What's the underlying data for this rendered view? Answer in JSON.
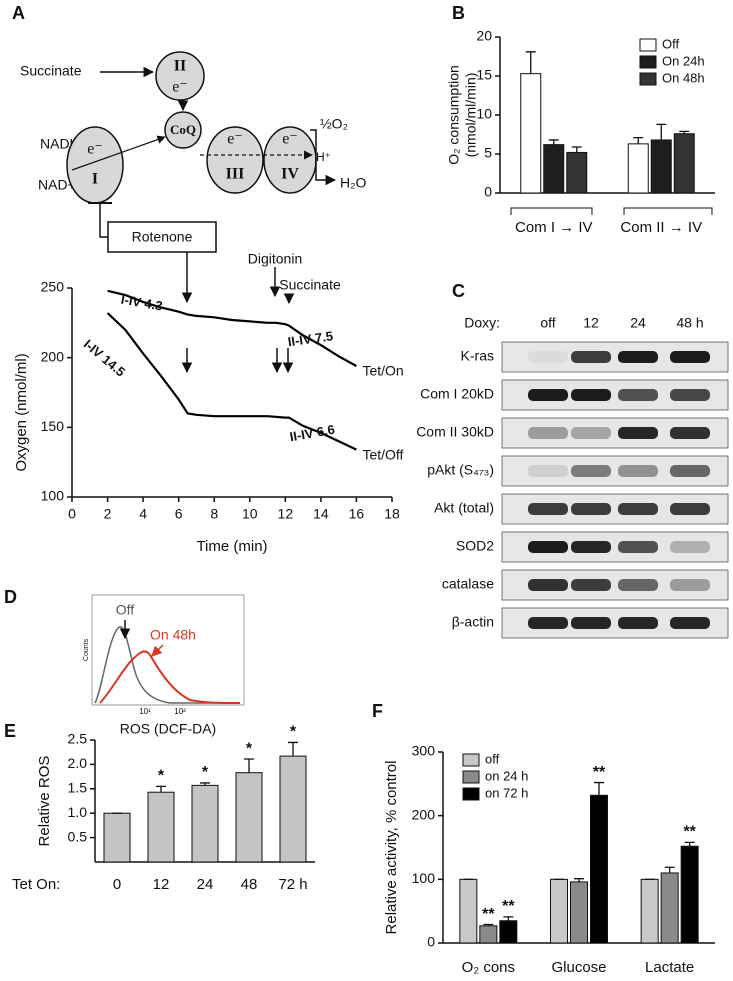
{
  "panel_labels": [
    "A",
    "B",
    "C",
    "D",
    "E",
    "F"
  ],
  "diagram": {
    "succinate": "Succinate",
    "complex_2": "II",
    "electron_2": "e⁻",
    "nadh": "NADH",
    "nad": "NAD+",
    "electron_1": "e⁻",
    "complex_1": "I",
    "coq": "CoQ",
    "electron_3": "e⁻",
    "complex_3": "III",
    "electron_4": "e⁻",
    "complex_4": "IV",
    "oxygen": "½O₂",
    "proton": "H⁺",
    "water": "H₂O",
    "rotenone": "Rotenone"
  },
  "blot": {
    "header": "Doxy:",
    "lanes": [
      "off",
      "12",
      "24",
      "48 h"
    ],
    "rows": [
      "K-ras",
      "Com I 20kD",
      "Com II 30kD",
      "pAkt (S₄₇₃)",
      "Akt (total)",
      "SOD2",
      "catalase",
      "β-actin"
    ]
  },
  "flow": {
    "ylabel": "Counts",
    "xticks": [
      "10¹",
      "10²"
    ],
    "xlabel": "ROS (DCF-DA)",
    "labels": [
      "Off",
      "On 48h"
    ],
    "colors": [
      "#555555",
      "#d9371f"
    ]
  },
  "chart_data": [
    {
      "type": "line",
      "xlabel": "Time (min)",
      "ylabel": "Oxygen (nmol/ml)",
      "xlim": [
        0,
        18
      ],
      "xticks": [
        0,
        2,
        4,
        6,
        8,
        10,
        12,
        14,
        16,
        18
      ],
      "ylim": [
        100,
        250
      ],
      "yticks": [
        100,
        150,
        200,
        250
      ],
      "series": [
        {
          "name": "Tet/On",
          "color": "#000000",
          "x": [
            2,
            3,
            4,
            5,
            6,
            6.5,
            7,
            8,
            9,
            10,
            11,
            11.5,
            12,
            12.2,
            13,
            14,
            15,
            16
          ],
          "values": [
            248,
            245,
            240,
            236,
            233,
            231,
            230,
            229,
            227,
            226,
            225,
            225,
            224,
            223,
            216,
            209,
            201,
            194
          ]
        },
        {
          "name": "Tet/Off",
          "color": "#000000",
          "x": [
            2,
            3,
            4,
            5,
            6,
            6.5,
            7,
            8,
            9,
            10,
            11,
            12,
            12.2,
            13,
            14,
            15,
            16
          ],
          "values": [
            232,
            220,
            203,
            187,
            170,
            160,
            159,
            158,
            158,
            158,
            158,
            157,
            157,
            151,
            146,
            140,
            134
          ]
        }
      ],
      "annotations": [
        "I-IV 4.3",
        "II-IV 7.5",
        "I-IV 14.5",
        "II-IV 6.6",
        "Digitonin",
        "Succinate"
      ]
    },
    {
      "type": "bar",
      "ylabel": [
        "O₂ consumption",
        "(nmol/ml/min)"
      ],
      "categories": [
        "Com I → IV",
        "Com II → IV"
      ],
      "ylim": [
        0,
        20
      ],
      "yticks": [
        0,
        5,
        10,
        15,
        20
      ],
      "legend": "top-right",
      "series": [
        {
          "name": "Off",
          "color": "#ffffff",
          "values": [
            15.3,
            6.3
          ],
          "errors": [
            2.8,
            0.8
          ]
        },
        {
          "name": "On 24h",
          "color": "#1e1e1e",
          "values": [
            6.2,
            6.8
          ],
          "errors": [
            0.6,
            2.0
          ]
        },
        {
          "name": "On 48h",
          "color": "#333333",
          "values": [
            5.2,
            7.6
          ],
          "errors": [
            0.7,
            0.3
          ]
        }
      ]
    },
    {
      "type": "bar",
      "ylabel": "Relative ROS",
      "xlabel": "Tet On:",
      "categories": [
        "0",
        "12",
        "24",
        "48",
        "72 h"
      ],
      "values": [
        1.0,
        1.43,
        1.57,
        1.83,
        2.17
      ],
      "errors": [
        0,
        0.12,
        0.05,
        0.28,
        0.28
      ],
      "significance": [
        null,
        "*",
        "*",
        "*",
        "*"
      ],
      "color": "#c4c4c4",
      "ylim": [
        0,
        2.5
      ],
      "yticks": [
        0.5,
        {
          "value": 1,
          "label": "1.0"
        },
        1.5,
        {
          "value": 2,
          "label": "2.0"
        },
        2.5
      ]
    },
    {
      "type": "bar",
      "ylabel": "Relative activity, % control",
      "categories": [
        "O₂ cons",
        "Glucose",
        "Lactate"
      ],
      "ylim": [
        0,
        300
      ],
      "yticks": [
        0,
        100,
        200,
        300
      ],
      "legend": "top-left",
      "series": [
        {
          "name": "off",
          "color": "#c8c8c8",
          "values": [
            100,
            100,
            100
          ],
          "errors": [
            0,
            0,
            0
          ],
          "significance": [
            null,
            null,
            null
          ]
        },
        {
          "name": "on 24 h",
          "color": "#8a8a8a",
          "values": [
            27,
            96,
            110
          ],
          "errors": [
            2,
            5,
            9
          ],
          "significance": [
            "**",
            null,
            null
          ]
        },
        {
          "name": "on 72 h",
          "color": "#000000",
          "values": [
            35,
            232,
            152
          ],
          "errors": [
            6,
            20,
            6
          ],
          "significance": [
            "**",
            "**",
            "**"
          ]
        }
      ]
    }
  ]
}
